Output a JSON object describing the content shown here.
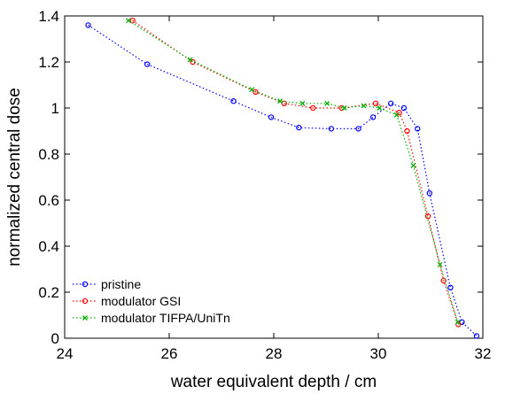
{
  "chart_data": {
    "type": "line",
    "xlabel": "water equivalent depth / cm",
    "ylabel": "normalized central dose",
    "xlim": [
      24,
      32
    ],
    "ylim": [
      0,
      1.4
    ],
    "xticks": [
      24,
      26,
      28,
      30,
      32
    ],
    "xtick_labels": [
      "24",
      "26",
      "28",
      "30",
      "32"
    ],
    "yticks": [
      0,
      0.2,
      0.4,
      0.6,
      0.8,
      1,
      1.2,
      1.4
    ],
    "ytick_labels": [
      "0",
      "0.2",
      "0.4",
      "0.6",
      "0.8",
      "1",
      "1.2",
      "1.4"
    ],
    "grid": false,
    "legend_position": "bottom-left",
    "series": [
      {
        "name": "pristine",
        "color": "#0000ff",
        "marker": "circle",
        "line_style": "dotted",
        "x": [
          24.45,
          25.58,
          27.23,
          27.95,
          28.48,
          29.1,
          29.62,
          29.9,
          30.24,
          30.49,
          30.75,
          30.98,
          31.38,
          31.6,
          31.88
        ],
        "y": [
          1.36,
          1.19,
          1.03,
          0.96,
          0.915,
          0.91,
          0.91,
          0.96,
          1.02,
          1.0,
          0.91,
          0.63,
          0.22,
          0.07,
          0.01
        ]
      },
      {
        "name": "modulator GSI",
        "color": "#ff0000",
        "marker": "circle",
        "line_style": "dotted",
        "x": [
          25.3,
          26.45,
          27.65,
          28.2,
          28.75,
          29.3,
          29.95,
          30.4,
          30.55,
          30.95,
          31.25,
          31.53
        ],
        "y": [
          1.38,
          1.2,
          1.07,
          1.02,
          1.0,
          1.0,
          1.02,
          0.98,
          0.9,
          0.53,
          0.25,
          0.06
        ]
      },
      {
        "name": "modulator TIFPA/UniTn",
        "color": "#00b000",
        "marker": "x",
        "line_style": "dotted",
        "x": [
          25.22,
          26.4,
          27.58,
          28.12,
          28.55,
          29.02,
          29.35,
          29.72,
          30.02,
          30.35,
          30.67,
          31.18,
          31.52
        ],
        "y": [
          1.38,
          1.21,
          1.08,
          1.03,
          1.02,
          1.02,
          1.0,
          1.01,
          1.0,
          0.97,
          0.75,
          0.32,
          0.07
        ]
      }
    ]
  }
}
